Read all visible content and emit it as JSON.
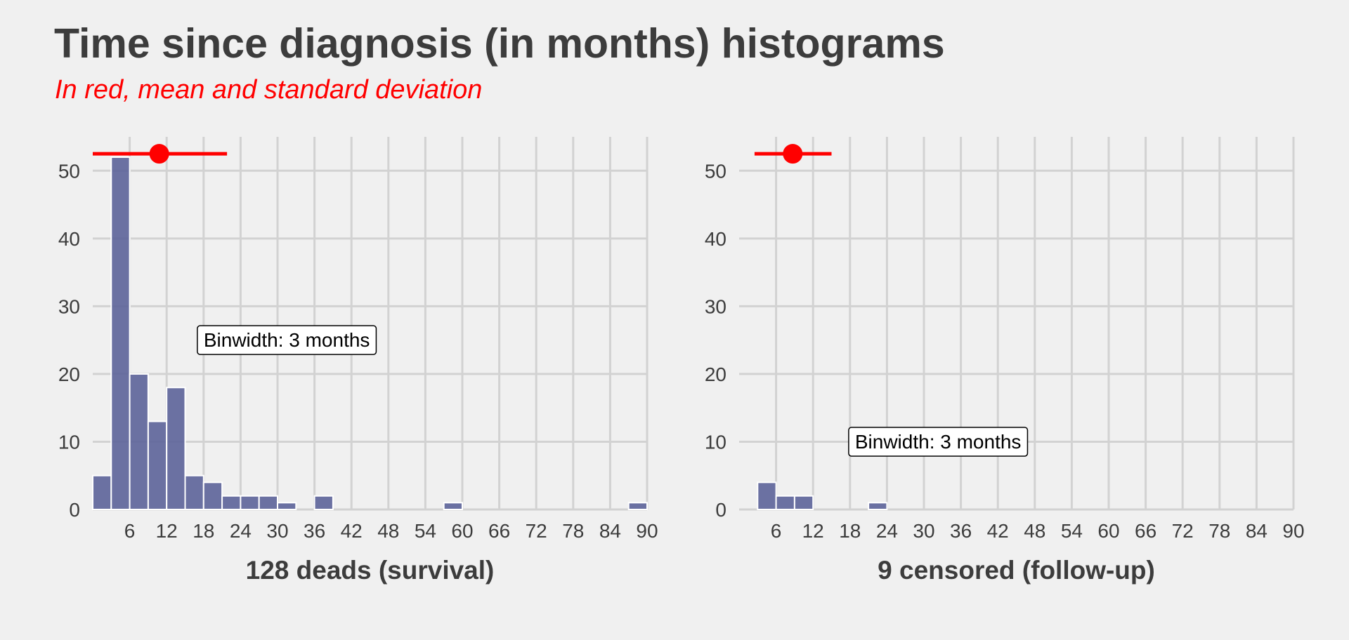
{
  "title": "Time since diagnosis (in months) histograms",
  "subtitle": "In red, mean and standard deviation",
  "colors": {
    "background": "#f0f0f0",
    "bar_fill": "#5c6399",
    "bar_stroke": "#ffffff",
    "grid": "#d2d2d2",
    "mean_sd": "#ff0000",
    "text": "#3c3c3c"
  },
  "chart_data": [
    {
      "type": "bar",
      "xlabel": "128 deads (survival)",
      "ylabel": "",
      "xlim": [
        0,
        90
      ],
      "ylim": [
        0,
        55
      ],
      "grid": true,
      "x_ticks": [
        6,
        12,
        18,
        24,
        30,
        36,
        42,
        48,
        54,
        60,
        66,
        72,
        78,
        84,
        90
      ],
      "y_ticks": [
        0,
        10,
        20,
        30,
        40,
        50
      ],
      "binwidth": 3,
      "bins": [
        {
          "start": 0,
          "end": 3,
          "count": 5
        },
        {
          "start": 3,
          "end": 6,
          "count": 52
        },
        {
          "start": 6,
          "end": 9,
          "count": 20
        },
        {
          "start": 9,
          "end": 12,
          "count": 13
        },
        {
          "start": 12,
          "end": 15,
          "count": 18
        },
        {
          "start": 15,
          "end": 18,
          "count": 5
        },
        {
          "start": 18,
          "end": 21,
          "count": 4
        },
        {
          "start": 21,
          "end": 24,
          "count": 2
        },
        {
          "start": 24,
          "end": 27,
          "count": 2
        },
        {
          "start": 27,
          "end": 30,
          "count": 2
        },
        {
          "start": 30,
          "end": 33,
          "count": 1
        },
        {
          "start": 36,
          "end": 39,
          "count": 2
        },
        {
          "start": 57,
          "end": 60,
          "count": 1
        },
        {
          "start": 87,
          "end": 90,
          "count": 1
        }
      ],
      "mean_sd": {
        "mean": 10.8,
        "lower": 0,
        "upper": 21.8,
        "y": 52.5
      },
      "annotation": {
        "text": "Binwidth: 3 months",
        "x": 31.5,
        "y": 25
      }
    },
    {
      "type": "bar",
      "xlabel": "9 censored (follow-up)",
      "ylabel": "",
      "xlim": [
        0,
        90
      ],
      "ylim": [
        0,
        55
      ],
      "grid": true,
      "x_ticks": [
        6,
        12,
        18,
        24,
        30,
        36,
        42,
        48,
        54,
        60,
        66,
        72,
        78,
        84,
        90
      ],
      "y_ticks": [
        0,
        10,
        20,
        30,
        40,
        50
      ],
      "binwidth": 3,
      "bins": [
        {
          "start": 3,
          "end": 6,
          "count": 4
        },
        {
          "start": 6,
          "end": 9,
          "count": 2
        },
        {
          "start": 9,
          "end": 12,
          "count": 2
        },
        {
          "start": 21,
          "end": 24,
          "count": 1
        }
      ],
      "mean_sd": {
        "mean": 8.7,
        "lower": 2.5,
        "upper": 15,
        "y": 52.5
      },
      "annotation": {
        "text": "Binwidth: 3 months",
        "x": 32.3,
        "y": 10
      }
    }
  ]
}
